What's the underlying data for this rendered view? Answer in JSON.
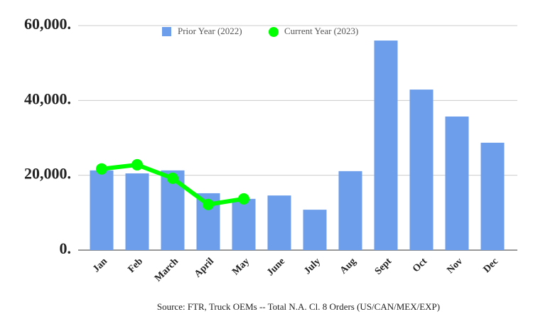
{
  "chart_data": {
    "type": "combo",
    "categories": [
      "Jan",
      "Feb",
      "March",
      "April",
      "May",
      "June",
      "July",
      "Aug",
      "Sept",
      "Oct",
      "Nov",
      "Dec"
    ],
    "series": [
      {
        "name": "Prior Year (2022)",
        "type": "bar",
        "color": "#6d9eeb",
        "values": [
          21300,
          20500,
          21300,
          15200,
          13700,
          14600,
          10800,
          21100,
          56000,
          42900,
          35700,
          28700
        ]
      },
      {
        "name": "Current Year (2023)",
        "type": "line",
        "color": "#00ff00",
        "values": [
          21700,
          22800,
          19200,
          12200,
          13700,
          null,
          null,
          null,
          null,
          null,
          null,
          null
        ]
      }
    ],
    "ylim": [
      0,
      60000
    ],
    "yticks": [
      {
        "value": 0,
        "label": "0."
      },
      {
        "value": 20000,
        "label": "20,000."
      },
      {
        "value": 40000,
        "label": "40,000."
      },
      {
        "value": 60000,
        "label": "60,000."
      }
    ],
    "grid": true,
    "legend": "top",
    "source": "Source: FTR, Truck OEMs -- Total N.A. Cl. 8 Orders (US/CAN/MEX/EXP)"
  }
}
